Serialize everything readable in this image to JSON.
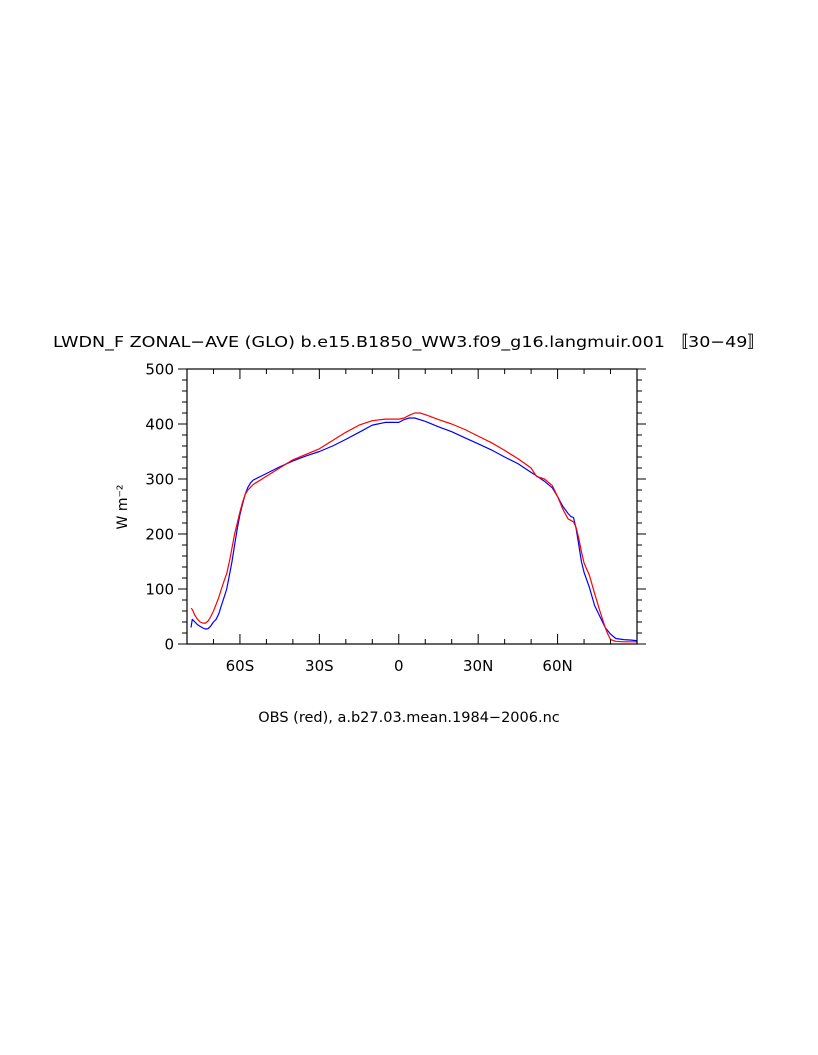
{
  "chart_data": {
    "type": "line",
    "title": "LWDN_F ZONAL−AVE (GLO) b.e15.B1850_WW3.f09_g16.langmuir.001 〚30−49〛",
    "ylabel": "W m⁻²",
    "xlabel": "OBS (red), a.b27.03.mean.1984−2006.nc",
    "xlim": [
      -80,
      90
    ],
    "ylim": [
      0,
      500
    ],
    "x_ticks": [
      {
        "value": -60,
        "label": "60S"
      },
      {
        "value": -30,
        "label": "30S"
      },
      {
        "value": 0,
        "label": "0"
      },
      {
        "value": 30,
        "label": "30N"
      },
      {
        "value": 60,
        "label": "60N"
      }
    ],
    "y_ticks": [
      {
        "value": 0,
        "label": "0"
      },
      {
        "value": 100,
        "label": "100"
      },
      {
        "value": 200,
        "label": "200"
      },
      {
        "value": 300,
        "label": "300"
      },
      {
        "value": 400,
        "label": "400"
      },
      {
        "value": 500,
        "label": "500"
      }
    ],
    "series": [
      {
        "color": "#0000ff",
        "x": [
          -78.5,
          -78,
          -77,
          -76,
          -75,
          -74,
          -73,
          -72,
          -71,
          -70,
          -69,
          -68,
          -67,
          -66,
          -65,
          -64,
          -63,
          -62,
          -61,
          -60,
          -59,
          -58,
          -57,
          -56,
          -55,
          -50,
          -45,
          -40,
          -35,
          -30,
          -25,
          -20,
          -15,
          -10,
          -5,
          0,
          2,
          4,
          6,
          10,
          15,
          20,
          25,
          30,
          35,
          40,
          45,
          50,
          52,
          55,
          58,
          60,
          62,
          64,
          65,
          66,
          67,
          68,
          69,
          70,
          72,
          74,
          76,
          78,
          80,
          82,
          85,
          88,
          90
        ],
        "values": [
          30,
          45,
          40,
          35,
          32,
          29,
          27,
          28,
          33,
          40,
          45,
          55,
          70,
          85,
          100,
          125,
          150,
          180,
          210,
          235,
          255,
          272,
          285,
          293,
          298,
          310,
          322,
          333,
          342,
          350,
          360,
          372,
          385,
          398,
          403,
          403,
          408,
          411,
          411,
          405,
          395,
          386,
          375,
          364,
          353,
          340,
          328,
          312,
          306,
          296,
          284,
          268,
          250,
          237,
          232,
          230,
          210,
          180,
          150,
          130,
          103,
          70,
          50,
          30,
          18,
          10,
          8,
          7,
          6
        ]
      },
      {
        "color": "#ff0000",
        "x": [
          -78.5,
          -78,
          -77,
          -76,
          -75,
          -74,
          -73,
          -72,
          -71,
          -70,
          -69,
          -68,
          -67,
          -66,
          -65,
          -64,
          -63,
          -62,
          -61,
          -60,
          -59,
          -58,
          -57,
          -56,
          -55,
          -50,
          -45,
          -40,
          -35,
          -30,
          -25,
          -20,
          -15,
          -10,
          -5,
          0,
          2,
          4,
          6,
          8,
          10,
          15,
          20,
          25,
          30,
          35,
          40,
          45,
          50,
          52,
          55,
          58,
          60,
          62,
          64,
          65,
          66,
          67,
          68,
          69,
          70,
          72,
          74,
          76,
          78,
          79,
          80,
          82,
          85,
          88,
          90
        ],
        "values": [
          65,
          63,
          52,
          45,
          40,
          38,
          38,
          42,
          50,
          60,
          72,
          85,
          100,
          115,
          128,
          150,
          175,
          200,
          220,
          240,
          258,
          272,
          280,
          285,
          290,
          305,
          320,
          335,
          345,
          355,
          370,
          385,
          398,
          406,
          409,
          409,
          411,
          416,
          420,
          420,
          417,
          408,
          400,
          390,
          378,
          366,
          352,
          337,
          320,
          305,
          300,
          288,
          268,
          245,
          227,
          225,
          222,
          212,
          192,
          168,
          147,
          125,
          92,
          60,
          30,
          18,
          8,
          5,
          4,
          4,
          4
        ]
      }
    ]
  }
}
